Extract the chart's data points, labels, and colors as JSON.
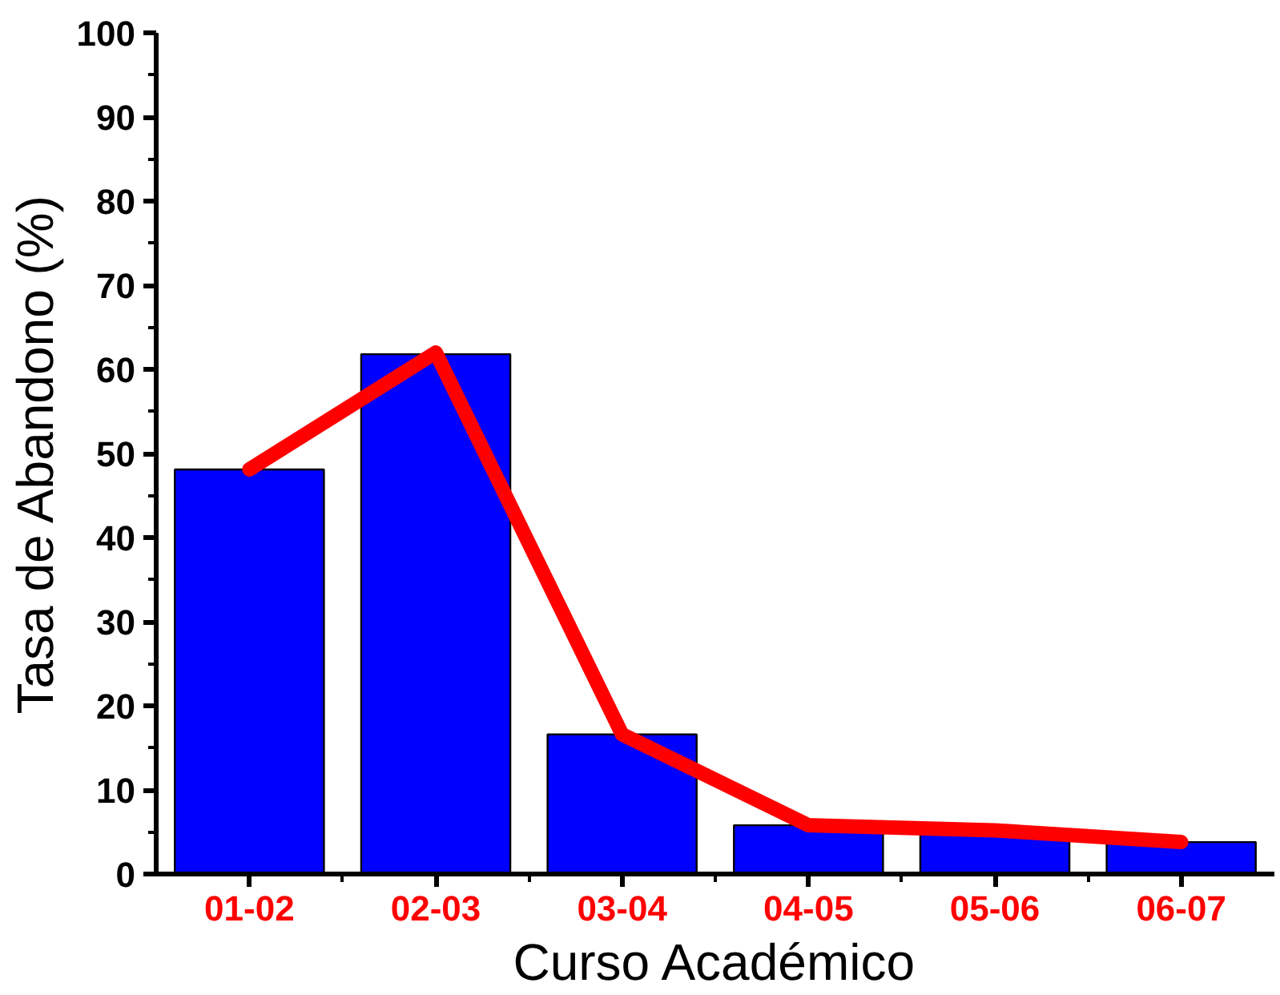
{
  "chart_data": {
    "type": "bar",
    "xlabel": "Curso Académico",
    "ylabel": "Tasa de Abandono (%)",
    "categories": [
      "01-02",
      "02-03",
      "03-04",
      "04-05",
      "05-06",
      "06-07"
    ],
    "series": [
      {
        "color": "#0000ff",
        "values": [
          48.1,
          61.8,
          16.6,
          5.8,
          5.0,
          3.8
        ]
      },
      {
        "type": "line",
        "color": "#ff0000",
        "values": [
          48.1,
          62.0,
          16.6,
          5.8,
          5.2,
          3.8
        ]
      }
    ],
    "ylim": [
      0,
      100
    ],
    "yticks": [
      0,
      10,
      20,
      30,
      40,
      50,
      60,
      70,
      80,
      90,
      100
    ],
    "grid": false
  }
}
